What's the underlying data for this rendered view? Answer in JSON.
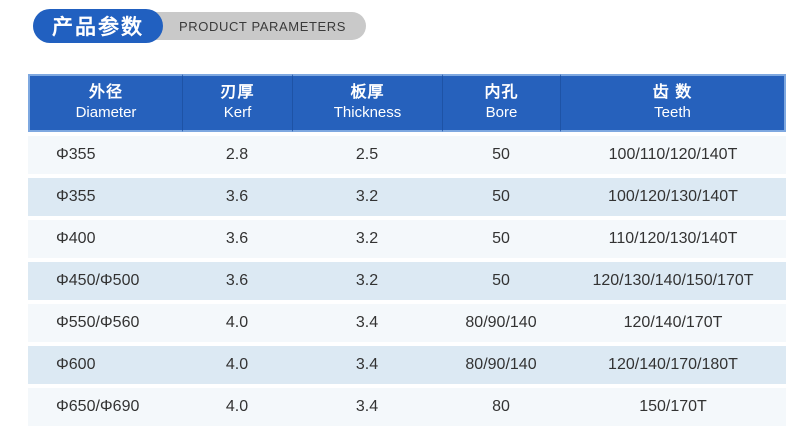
{
  "badge": {
    "title_cn": "产品参数",
    "title_en": "PRODUCT PARAMETERS",
    "pill_blue": "#2160c0",
    "pill_gray": "#c9c9c9"
  },
  "table": {
    "header_bg": "#2661bc",
    "header_border": "#7ea8e0",
    "row_light": "#f4f8fb",
    "row_blue": "#dce9f3",
    "text_color": "#333333",
    "columns": [
      {
        "cn": "外径",
        "en": "Diameter"
      },
      {
        "cn": "刃厚",
        "en": "Kerf"
      },
      {
        "cn": "板厚",
        "en": "Thickness"
      },
      {
        "cn": "内孔",
        "en": "Bore"
      },
      {
        "cn": "齿 数",
        "en": "Teeth"
      }
    ],
    "rows": [
      [
        "Φ355",
        "2.8",
        "2.5",
        "50",
        "100/110/120/140T"
      ],
      [
        "Φ355",
        "3.6",
        "3.2",
        "50",
        "100/120/130/140T"
      ],
      [
        "Φ400",
        "3.6",
        "3.2",
        "50",
        "110/120/130/140T"
      ],
      [
        "Φ450/Φ500",
        "3.6",
        "3.2",
        "50",
        "120/130/140/150/170T"
      ],
      [
        "Φ550/Φ560",
        "4.0",
        "3.4",
        "80/90/140",
        "120/140/170T"
      ],
      [
        "Φ600",
        "4.0",
        "3.4",
        "80/90/140",
        "120/140/170/180T"
      ],
      [
        "Φ650/Φ690",
        "4.0",
        "3.4",
        "80",
        "150/170T"
      ]
    ]
  }
}
